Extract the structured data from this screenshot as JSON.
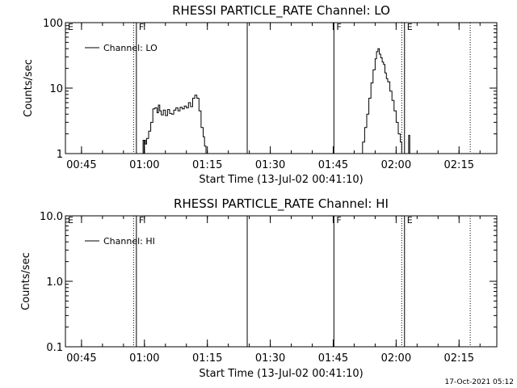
{
  "chart_data": [
    {
      "type": "line",
      "title": "RHESSI PARTICLE_RATE Channel: LO",
      "xlabel": "Start Time (13-Jul-02 00:41:10)",
      "ylabel": "Counts/sec",
      "y_scale": "log",
      "ylim": [
        1,
        100
      ],
      "xlim": [
        "00:41:10",
        "02:24:00"
      ],
      "x_ticks": [
        "00:45",
        "01:00",
        "01:15",
        "01:30",
        "01:45",
        "02:00",
        "02:15"
      ],
      "y_ticks": [
        "1",
        "10",
        "100"
      ],
      "legend": {
        "position": "top-left",
        "entries": [
          "Channel: LO"
        ]
      },
      "grid": false,
      "series": [
        {
          "name": "Channel: LO",
          "segments": [
            [
              [
                "00:59:25",
                1.0
              ],
              [
                "00:59:40",
                1.6
              ],
              [
                "00:59:55",
                1.0
              ],
              [
                "01:00:00",
                1.6
              ],
              [
                "01:00:15",
                1.4
              ],
              [
                "01:00:30",
                1.7
              ],
              [
                "01:01:00",
                2.2
              ],
              [
                "01:01:30",
                3.0
              ],
              [
                "01:02:00",
                4.8
              ],
              [
                "01:02:30",
                5.0
              ],
              [
                "01:03:00",
                4.2
              ],
              [
                "01:03:20",
                5.5
              ],
              [
                "01:03:40",
                4.5
              ],
              [
                "01:04:00",
                3.9
              ],
              [
                "01:04:30",
                4.6
              ],
              [
                "01:05:00",
                3.8
              ],
              [
                "01:05:30",
                4.7
              ],
              [
                "01:06:00",
                4.1
              ],
              [
                "01:06:30",
                4.0
              ],
              [
                "01:07:00",
                4.6
              ],
              [
                "01:07:30",
                5.0
              ],
              [
                "01:08:00",
                4.5
              ],
              [
                "01:08:30",
                5.1
              ],
              [
                "01:09:00",
                4.8
              ],
              [
                "01:09:30",
                5.3
              ],
              [
                "01:10:00",
                5.0
              ],
              [
                "01:10:30",
                6.0
              ],
              [
                "01:11:00",
                5.2
              ],
              [
                "01:11:30",
                7.0
              ],
              [
                "01:12:00",
                7.8
              ],
              [
                "01:12:30",
                7.0
              ],
              [
                "01:13:00",
                4.5
              ],
              [
                "01:13:30",
                2.5
              ],
              [
                "01:14:00",
                1.8
              ],
              [
                "01:14:20",
                1.3
              ],
              [
                "01:14:40",
                1.0
              ]
            ],
            [
              [
                "01:51:40",
                1.0
              ],
              [
                "01:52:00",
                1.5
              ],
              [
                "01:52:30",
                2.5
              ],
              [
                "01:53:00",
                4.0
              ],
              [
                "01:53:30",
                7.0
              ],
              [
                "01:54:00",
                12.0
              ],
              [
                "01:54:30",
                19.0
              ],
              [
                "01:55:00",
                28.0
              ],
              [
                "01:55:20",
                36.0
              ],
              [
                "01:55:40",
                40.0
              ],
              [
                "01:56:00",
                33.0
              ],
              [
                "01:56:20",
                29.0
              ],
              [
                "01:56:40",
                25.0
              ],
              [
                "01:57:00",
                23.0
              ],
              [
                "01:57:20",
                17.0
              ],
              [
                "01:57:40",
                14.0
              ],
              [
                "01:58:00",
                12.5
              ],
              [
                "01:58:30",
                9.0
              ],
              [
                "01:59:00",
                6.5
              ],
              [
                "01:59:30",
                4.5
              ],
              [
                "02:00:00",
                3.0
              ],
              [
                "02:00:30",
                2.0
              ],
              [
                "02:01:00",
                1.5
              ],
              [
                "02:01:20",
                1.0
              ]
            ],
            [
              [
                "02:02:45",
                1.0
              ],
              [
                "02:03:00",
                1.9
              ],
              [
                "02:03:15",
                1.0
              ]
            ]
          ]
        }
      ],
      "markers": [
        {
          "time": "00:57:25",
          "style": "dotted",
          "label": ""
        },
        {
          "time": "00:58:05",
          "style": "solid",
          "label": "F"
        },
        {
          "time": "01:24:30",
          "style": "solid",
          "label": ""
        },
        {
          "time": "01:45:10",
          "style": "solid",
          "label": "F"
        },
        {
          "time": "02:01:20",
          "style": "dotted",
          "label": ""
        },
        {
          "time": "02:02:00",
          "style": "solid",
          "label": "E"
        },
        {
          "time": "02:17:40",
          "style": "dotted",
          "label": ""
        }
      ],
      "edge_flag": "E"
    },
    {
      "type": "line",
      "title": "RHESSI PARTICLE_RATE Channel: HI",
      "xlabel": "Start Time (13-Jul-02 00:41:10)",
      "ylabel": "Counts/sec",
      "y_scale": "log",
      "ylim": [
        0.1,
        10.0
      ],
      "xlim": [
        "00:41:10",
        "02:24:00"
      ],
      "x_ticks": [
        "00:45",
        "01:00",
        "01:15",
        "01:30",
        "01:45",
        "02:00",
        "02:15"
      ],
      "y_ticks": [
        "0.1",
        "1.0",
        "10.0"
      ],
      "legend": {
        "position": "top-left",
        "entries": [
          "Channel: HI"
        ]
      },
      "grid": false,
      "series": [
        {
          "name": "Channel: HI",
          "segments": []
        }
      ],
      "markers": [
        {
          "time": "00:57:25",
          "style": "dotted",
          "label": ""
        },
        {
          "time": "00:58:05",
          "style": "solid",
          "label": "F"
        },
        {
          "time": "01:24:30",
          "style": "solid",
          "label": ""
        },
        {
          "time": "01:45:10",
          "style": "solid",
          "label": "F"
        },
        {
          "time": "02:01:20",
          "style": "dotted",
          "label": ""
        },
        {
          "time": "02:02:00",
          "style": "solid",
          "label": "E"
        },
        {
          "time": "02:17:40",
          "style": "dotted",
          "label": ""
        }
      ],
      "edge_flag": "E"
    }
  ],
  "footer": {
    "timestamp": "17-Oct-2021 05:12"
  }
}
